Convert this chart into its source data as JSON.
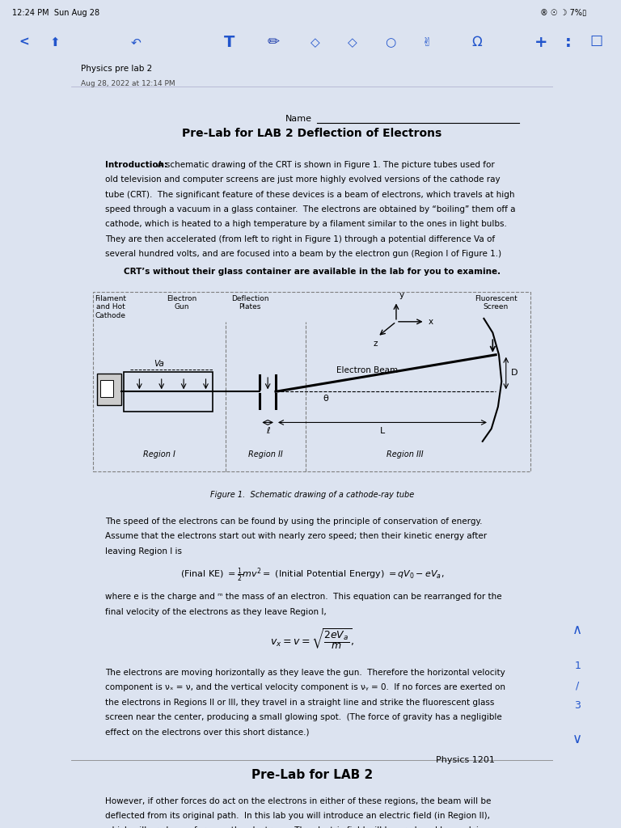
{
  "background_color": "#dce3f0",
  "page_bg": "#ffffff",
  "title": "Pre-Lab for LAB 2 Deflection of Electrons",
  "fig_caption": "Figure 1.  Schematic drawing of a cathode-ray tube",
  "physics_label": "Physics 1201",
  "prelab2_title": "Pre-Lab for LAB 2",
  "header_text": "Physics pre lab 2",
  "header_date": "Aug 28, 2022 at 12:14 PM"
}
